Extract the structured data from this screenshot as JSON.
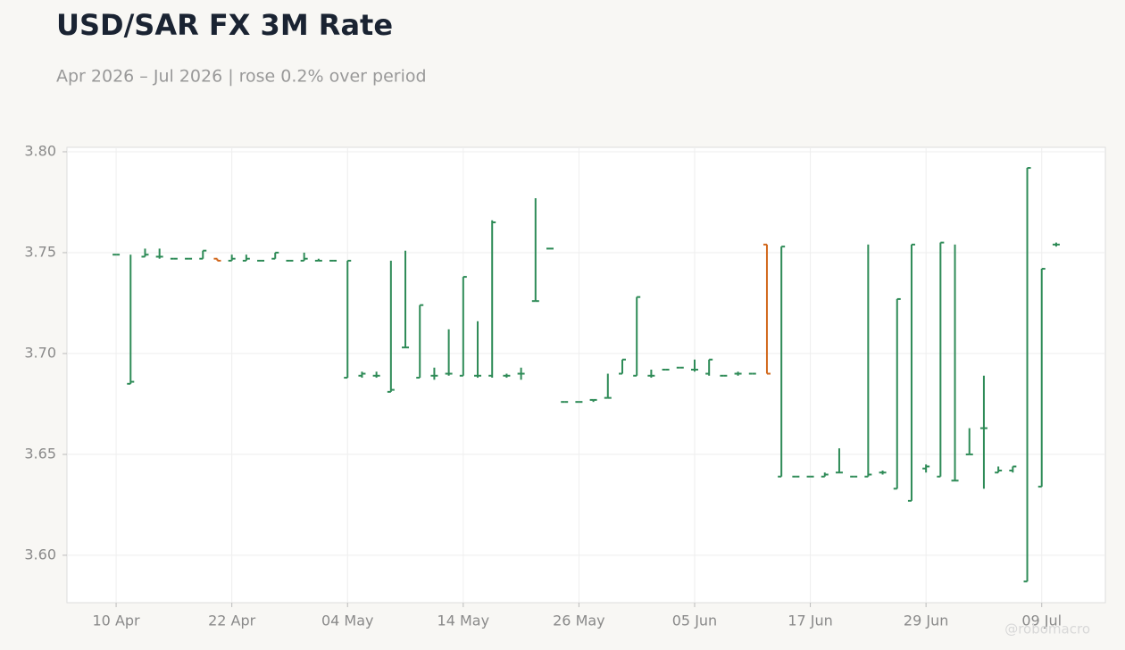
{
  "chart_data": {
    "type": "ohlc",
    "title": "USD/SAR FX 3M Rate",
    "subtitle": "Apr 2026 – Jul 2026 | rose 0.2% over period",
    "watermark": "@robomacro",
    "categories": [
      "10 Apr",
      null,
      null,
      null,
      null,
      null,
      null,
      null,
      "22 Apr",
      null,
      null,
      null,
      null,
      null,
      null,
      null,
      "04 May",
      null,
      null,
      null,
      null,
      null,
      null,
      null,
      "14 May",
      null,
      null,
      null,
      null,
      null,
      null,
      null,
      "26 May",
      null,
      null,
      null,
      null,
      null,
      null,
      null,
      "05 Jun",
      null,
      null,
      null,
      null,
      null,
      null,
      null,
      "17 Jun",
      null,
      null,
      null,
      null,
      null,
      null,
      null,
      "29 Jun",
      null,
      null,
      null,
      null,
      null,
      null,
      null,
      "09 Jul",
      null
    ],
    "open": [
      3.749,
      3.685,
      3.748,
      3.748,
      3.747,
      3.747,
      3.747,
      3.747,
      3.746,
      3.746,
      3.746,
      3.747,
      3.746,
      3.746,
      3.746,
      3.746,
      3.688,
      3.689,
      3.689,
      3.681,
      3.703,
      3.688,
      3.689,
      3.69,
      3.689,
      3.689,
      3.689,
      3.689,
      3.69,
      3.726,
      3.752,
      3.676,
      3.676,
      3.677,
      3.678,
      3.69,
      3.689,
      3.689,
      3.692,
      3.693,
      3.692,
      3.69,
      3.689,
      3.69,
      3.69,
      3.754,
      3.639,
      3.639,
      3.639,
      3.639,
      3.641,
      3.639,
      3.639,
      3.641,
      3.633,
      3.627,
      3.643,
      3.639,
      3.637,
      3.65,
      3.663,
      3.641,
      3.642,
      3.587,
      3.634,
      3.754
    ],
    "high": [
      3.749,
      3.749,
      3.752,
      3.752,
      3.747,
      3.747,
      3.751,
      3.747,
      3.749,
      3.749,
      3.746,
      3.75,
      3.746,
      3.75,
      3.747,
      3.746,
      3.746,
      3.691,
      3.691,
      3.746,
      3.751,
      3.724,
      3.693,
      3.712,
      3.738,
      3.716,
      3.766,
      3.69,
      3.693,
      3.777,
      3.752,
      3.676,
      3.676,
      3.677,
      3.69,
      3.697,
      3.728,
      3.692,
      3.692,
      3.693,
      3.697,
      3.697,
      3.689,
      3.691,
      3.69,
      3.754,
      3.753,
      3.639,
      3.639,
      3.641,
      3.653,
      3.639,
      3.754,
      3.642,
      3.727,
      3.754,
      3.645,
      3.755,
      3.754,
      3.663,
      3.689,
      3.644,
      3.644,
      3.792,
      3.742,
      3.755
    ],
    "low": [
      3.749,
      3.685,
      3.748,
      3.747,
      3.747,
      3.747,
      3.747,
      3.746,
      3.746,
      3.746,
      3.746,
      3.747,
      3.746,
      3.746,
      3.746,
      3.746,
      3.688,
      3.688,
      3.688,
      3.681,
      3.703,
      3.688,
      3.687,
      3.689,
      3.689,
      3.688,
      3.688,
      3.688,
      3.687,
      3.726,
      3.752,
      3.676,
      3.676,
      3.676,
      3.678,
      3.69,
      3.689,
      3.688,
      3.692,
      3.693,
      3.691,
      3.689,
      3.689,
      3.689,
      3.69,
      3.69,
      3.639,
      3.639,
      3.639,
      3.639,
      3.641,
      3.639,
      3.639,
      3.64,
      3.633,
      3.627,
      3.641,
      3.639,
      3.637,
      3.65,
      3.633,
      3.641,
      3.641,
      3.587,
      3.634,
      3.753
    ],
    "close": [
      3.749,
      3.686,
      3.749,
      3.748,
      3.747,
      3.747,
      3.751,
      3.746,
      3.747,
      3.747,
      3.746,
      3.75,
      3.746,
      3.747,
      3.746,
      3.746,
      3.746,
      3.69,
      3.689,
      3.682,
      3.703,
      3.724,
      3.689,
      3.69,
      3.738,
      3.689,
      3.765,
      3.689,
      3.69,
      3.726,
      3.752,
      3.676,
      3.676,
      3.677,
      3.678,
      3.697,
      3.728,
      3.689,
      3.692,
      3.693,
      3.692,
      3.697,
      3.689,
      3.69,
      3.69,
      3.69,
      3.753,
      3.639,
      3.639,
      3.64,
      3.641,
      3.639,
      3.64,
      3.641,
      3.727,
      3.754,
      3.644,
      3.755,
      3.637,
      3.65,
      3.663,
      3.642,
      3.644,
      3.792,
      3.742,
      3.754
    ],
    "up_color": "#2e8b57",
    "down_color": "#d2691e",
    "ylim": [
      3.5765,
      3.8022
    ],
    "yticks": [
      {
        "value": 3.6,
        "label": "3.60"
      },
      3.65,
      {
        "value": 3.7,
        "label": "3.70"
      },
      3.75,
      {
        "value": 3.8,
        "label": "3.80"
      }
    ],
    "grid": true
  }
}
